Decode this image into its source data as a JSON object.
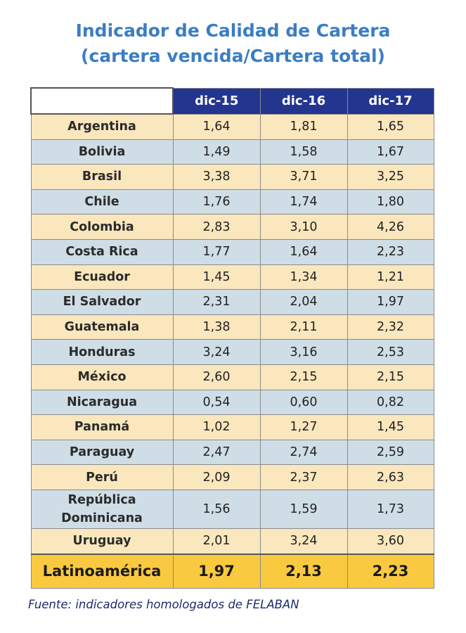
{
  "title_line1": "Indicador de Calidad de Cartera",
  "title_line2": "(cartera vencida/Cartera total)",
  "columns": [
    "",
    "dic-15",
    "dic-16",
    "dic-17"
  ],
  "rows": [
    {
      "country": "Argentina",
      "v": [
        "1,64",
        "1,81",
        "1,65"
      ]
    },
    {
      "country": "Bolivia",
      "v": [
        "1,49",
        "1,58",
        "1,67"
      ]
    },
    {
      "country": "Brasil",
      "v": [
        "3,38",
        "3,71",
        "3,25"
      ]
    },
    {
      "country": "Chile",
      "v": [
        "1,76",
        "1,74",
        "1,80"
      ]
    },
    {
      "country": "Colombia",
      "v": [
        "2,83",
        "3,10",
        "4,26"
      ]
    },
    {
      "country": "Costa Rica",
      "v": [
        "1,77",
        "1,64",
        "2,23"
      ]
    },
    {
      "country": "Ecuador",
      "v": [
        "1,45",
        "1,34",
        "1,21"
      ]
    },
    {
      "country": "El Salvador",
      "v": [
        "2,31",
        "2,04",
        "1,97"
      ]
    },
    {
      "country": "Guatemala",
      "v": [
        "1,38",
        "2,11",
        "2,32"
      ]
    },
    {
      "country": "Honduras",
      "v": [
        "3,24",
        "3,16",
        "2,53"
      ]
    },
    {
      "country": "México",
      "v": [
        "2,60",
        "2,15",
        "2,15"
      ]
    },
    {
      "country": "Nicaragua",
      "v": [
        "0,54",
        "0,60",
        "0,82"
      ]
    },
    {
      "country": "Panamá",
      "v": [
        "1,02",
        "1,27",
        "1,45"
      ]
    },
    {
      "country": "Paraguay",
      "v": [
        "2,47",
        "2,74",
        "2,59"
      ]
    },
    {
      "country": "Perú",
      "v": [
        "2,09",
        "2,37",
        "2,63"
      ]
    },
    {
      "country": "República Dominicana",
      "v": [
        "1,56",
        "1,59",
        "1,73"
      ]
    },
    {
      "country": "Uruguay",
      "v": [
        "2,01",
        "3,24",
        "3,60"
      ]
    }
  ],
  "total": {
    "country": "Latinoamérica",
    "v": [
      "1,97",
      "2,13",
      "2,23"
    ]
  },
  "source": "Fuente: indicadores homologados de FELABAN"
}
